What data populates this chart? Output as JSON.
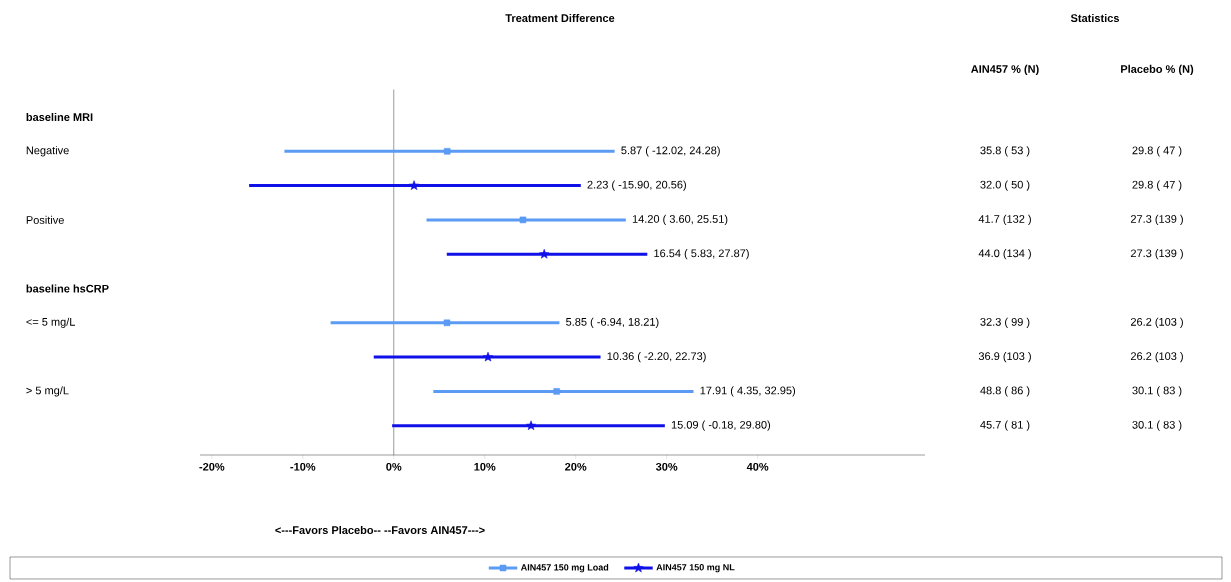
{
  "chart_data": {
    "type": "scatter",
    "orientation": "horizontal",
    "title": "Treatment Difference",
    "categories": [
      "baseline MRI",
      "Negative",
      null,
      "Positive",
      null,
      "baseline hsCRP",
      "<= 5 mg/L",
      null,
      "> 5 mg/L",
      null
    ],
    "series": [
      {
        "name": "AIN457 150 mg Load",
        "color": "#5b9bf4",
        "marker": "square",
        "values": [
          null,
          5.87,
          null,
          14.2,
          null,
          null,
          5.85,
          null,
          17.91,
          null
        ],
        "errors": [
          null,
          [
            -12.02,
            24.28
          ],
          null,
          [
            3.6,
            25.51
          ],
          null,
          null,
          [
            -6.94,
            18.21
          ],
          null,
          [
            4.35,
            32.95
          ],
          null
        ]
      },
      {
        "name": "AIN457 150 mg NL",
        "color": "#1010e8",
        "marker": "star",
        "values": [
          null,
          null,
          2.23,
          null,
          16.54,
          null,
          null,
          10.36,
          null,
          15.09
        ],
        "errors": [
          null,
          null,
          [
            -15.9,
            20.56
          ],
          null,
          [
            5.83,
            27.87
          ],
          null,
          null,
          [
            -2.2,
            22.73
          ],
          null,
          [
            -0.18,
            29.8
          ]
        ]
      }
    ],
    "xlim": [
      -21.3,
      58.4
    ],
    "xticks": [
      {
        "value": -20,
        "label": "-20%"
      },
      {
        "value": -10,
        "label": "-10%"
      },
      {
        "value": 0,
        "label": "0%"
      },
      {
        "value": 10,
        "label": "10%"
      },
      {
        "value": 20,
        "label": "20%"
      },
      {
        "value": 30,
        "label": "30%"
      },
      {
        "value": 40,
        "label": "40%"
      }
    ],
    "ref_lines": [
      {
        "axis": "x",
        "value": 0,
        "color": "#000000"
      }
    ],
    "legend": "bottom",
    "grid": false,
    "annotations": [
      "Statistics",
      "AIN457 % (N)",
      "Placebo % (N)",
      "5.87 ( -12.02,  24.28)",
      "35.8 ( 53 )",
      "29.8 ( 47 )",
      "2.23 ( -15.90,  20.56)",
      "32.0 ( 50 )",
      "29.8 ( 47 )",
      "14.20 (   3.60,  25.51)",
      "41.7 (132 )",
      "27.3 (139 )",
      "16.54 (   5.83,  27.87)",
      "44.0 (134 )",
      "27.3 (139 )",
      "5.85 (  -6.94,  18.21)",
      "32.3 ( 99 )",
      "26.2 (103 )",
      "10.36 (  -2.20,  22.73)",
      "36.9 (103 )",
      "26.2 (103 )",
      "17.91 (   4.35,  32.95)",
      "48.8 ( 86 )",
      "30.1 ( 83 )",
      "15.09 (  -0.18,  29.80)",
      "45.7 ( 81 )",
      "30.1 ( 83 )",
      "<---Favors Placebo--  --Favors AIN457--->"
    ]
  }
}
